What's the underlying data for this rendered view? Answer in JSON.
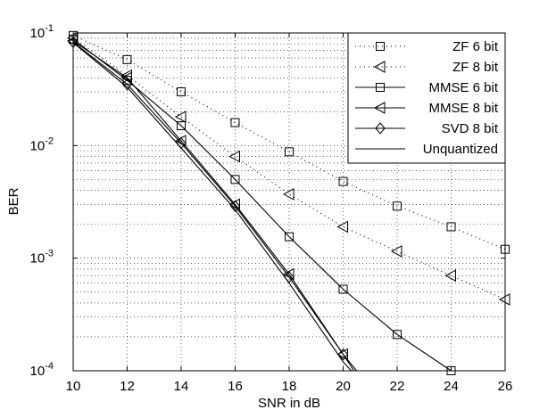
{
  "chart_data": {
    "type": "line",
    "xlabel": "SNR in dB",
    "ylabel": "BER",
    "xlim": [
      10,
      26
    ],
    "ylim": [
      0.0001,
      0.1
    ],
    "yscale": "log",
    "grid": true,
    "legend_position": "top-right",
    "x_ticks": [
      "10",
      "12",
      "14",
      "16",
      "18",
      "20",
      "22",
      "24",
      "26"
    ],
    "y_ticks": [
      {
        "base": "10",
        "exp": "-1"
      },
      {
        "base": "10",
        "exp": "-2"
      },
      {
        "base": "10",
        "exp": "-3"
      },
      {
        "base": "10",
        "exp": "-4"
      }
    ],
    "series": [
      {
        "name": "ZF 6 bit",
        "line": "dotted",
        "marker": "square",
        "x": [
          10,
          12,
          14,
          16,
          18,
          20,
          22,
          24,
          26
        ],
        "y": [
          0.095,
          0.058,
          0.03,
          0.016,
          0.0088,
          0.0048,
          0.0029,
          0.0019,
          0.0012
        ]
      },
      {
        "name": "ZF 8 bit",
        "line": "dotted",
        "marker": "triangle-left",
        "x": [
          10,
          12,
          14,
          16,
          18,
          20,
          22,
          24,
          26
        ],
        "y": [
          0.09,
          0.042,
          0.018,
          0.008,
          0.0037,
          0.0019,
          0.00115,
          0.0007,
          0.00043
        ]
      },
      {
        "name": "MMSE 6 bit",
        "line": "solid",
        "marker": "square",
        "x": [
          10,
          12,
          14,
          16,
          18,
          20,
          22,
          24
        ],
        "y": [
          0.088,
          0.038,
          0.015,
          0.005,
          0.00155,
          0.00053,
          0.00021,
          0.0001
        ]
      },
      {
        "name": "MMSE 8 bit",
        "line": "solid",
        "marker": "triangle-left",
        "x": [
          10,
          12,
          14,
          16,
          18,
          20,
          20.5
        ],
        "y": [
          0.085,
          0.04,
          0.011,
          0.003,
          0.00072,
          0.00014,
          0.0001
        ]
      },
      {
        "name": "SVD 8 bit",
        "line": "solid",
        "marker": "diamond",
        "x": [
          10,
          12,
          14,
          16,
          18,
          20,
          20.4
        ],
        "y": [
          0.083,
          0.035,
          0.0105,
          0.0029,
          0.00068,
          0.00014,
          0.0001
        ]
      },
      {
        "name": "Unquantized",
        "line": "solid",
        "marker": "none",
        "x": [
          10,
          12,
          14,
          16,
          18,
          20,
          20.3
        ],
        "y": [
          0.082,
          0.033,
          0.0095,
          0.0027,
          0.0006,
          0.00012,
          0.0001
        ]
      }
    ]
  }
}
